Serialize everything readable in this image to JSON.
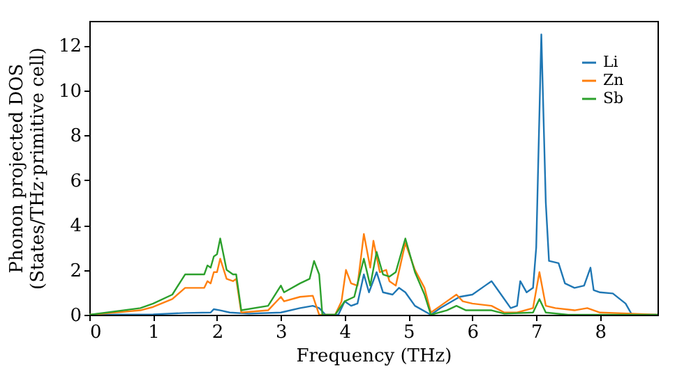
{
  "chart_data": {
    "type": "line",
    "xlabel": "Frequency (THz)",
    "ylabel": "Phonon projected DOS\n(States/THz·primitive cell)",
    "xlim": [
      0,
      8.9
    ],
    "xticks": [
      0,
      1,
      2,
      3,
      4,
      5,
      6,
      7,
      8
    ],
    "ylim": [
      0,
      13.1
    ],
    "yticks": [
      0,
      2,
      4,
      6,
      8,
      10,
      12
    ],
    "grid": false,
    "legend": "top right",
    "series": [
      {
        "name": "Li",
        "color": "#1f77b4",
        "x": [
          0,
          1,
          1.5,
          1.9,
          1.95,
          2.05,
          2.2,
          2.5,
          3.0,
          3.3,
          3.5,
          3.6,
          3.7,
          3.9,
          4.0,
          4.1,
          4.2,
          4.3,
          4.38,
          4.5,
          4.6,
          4.75,
          4.85,
          4.95,
          5.1,
          5.35,
          5.5,
          5.8,
          6.0,
          6.2,
          6.3,
          6.4,
          6.6,
          6.7,
          6.75,
          6.85,
          6.95,
          7.0,
          7.08,
          7.15,
          7.2,
          7.35,
          7.45,
          7.6,
          7.75,
          7.85,
          7.9,
          8.0,
          8.2,
          8.4,
          8.5,
          8.9
        ],
        "values": [
          0,
          0.02,
          0.08,
          0.1,
          0.25,
          0.2,
          0.1,
          0.05,
          0.1,
          0.3,
          0.4,
          0.3,
          0,
          0,
          0.6,
          0.4,
          0.5,
          1.8,
          1.0,
          1.9,
          1.0,
          0.9,
          1.2,
          1.0,
          0.4,
          0,
          0.3,
          0.8,
          0.9,
          1.3,
          1.5,
          1.1,
          0.3,
          0.4,
          1.5,
          1.0,
          1.2,
          3.0,
          12.5,
          5,
          2.4,
          2.3,
          1.4,
          1.2,
          1.3,
          2.1,
          1.1,
          1.0,
          0.95,
          0.5,
          0,
          0
        ]
      },
      {
        "name": "Zn",
        "color": "#ff7f0e",
        "x": [
          0,
          0.8,
          1.0,
          1.3,
          1.5,
          1.8,
          1.85,
          1.9,
          1.95,
          2.0,
          2.05,
          2.15,
          2.25,
          2.3,
          2.38,
          2.8,
          3.0,
          3.05,
          3.3,
          3.5,
          3.6,
          3.85,
          3.95,
          4.02,
          4.1,
          4.2,
          4.3,
          4.4,
          4.45,
          4.55,
          4.65,
          4.7,
          4.8,
          4.95,
          5.1,
          5.25,
          5.35,
          5.5,
          5.75,
          5.85,
          6.0,
          6.3,
          6.5,
          6.7,
          6.95,
          7.05,
          7.15,
          7.3,
          7.6,
          7.8,
          8.0,
          8.5,
          8.9
        ],
        "values": [
          0,
          0.2,
          0.35,
          0.7,
          1.2,
          1.2,
          1.5,
          1.4,
          1.9,
          1.9,
          2.5,
          1.6,
          1.5,
          1.6,
          0.1,
          0.2,
          0.8,
          0.6,
          0.8,
          0.85,
          0,
          0,
          0.6,
          2.0,
          1.4,
          1.3,
          3.6,
          2.1,
          3.3,
          1.9,
          2.0,
          1.5,
          1.3,
          3.2,
          2.0,
          1.2,
          0.1,
          0.4,
          0.9,
          0.6,
          0.5,
          0.4,
          0.1,
          0.1,
          0.3,
          1.9,
          0.4,
          0.3,
          0.2,
          0.3,
          0.1,
          0.05,
          0
        ]
      },
      {
        "name": "Sb",
        "color": "#2ca02c",
        "x": [
          0,
          0.8,
          1.0,
          1.3,
          1.5,
          1.8,
          1.85,
          1.9,
          1.95,
          2.0,
          2.05,
          2.15,
          2.25,
          2.3,
          2.38,
          2.8,
          3.0,
          3.05,
          3.3,
          3.45,
          3.52,
          3.6,
          3.65,
          3.85,
          4.0,
          4.15,
          4.3,
          4.4,
          4.5,
          4.6,
          4.7,
          4.8,
          4.95,
          5.1,
          5.25,
          5.35,
          5.6,
          5.75,
          5.9,
          6.3,
          6.5,
          6.95,
          7.05,
          7.15,
          7.5,
          8.9
        ],
        "values": [
          0,
          0.3,
          0.5,
          0.9,
          1.8,
          1.8,
          2.2,
          2.1,
          2.6,
          2.7,
          3.4,
          2.0,
          1.8,
          1.8,
          0.2,
          0.4,
          1.3,
          1.0,
          1.4,
          1.6,
          2.4,
          1.8,
          0,
          0,
          0.6,
          0.8,
          2.5,
          1.3,
          2.8,
          1.8,
          1.7,
          1.9,
          3.4,
          1.9,
          0.9,
          0,
          0.2,
          0.4,
          0.2,
          0.2,
          0.05,
          0.1,
          0.7,
          0.1,
          0,
          0
        ]
      }
    ]
  }
}
